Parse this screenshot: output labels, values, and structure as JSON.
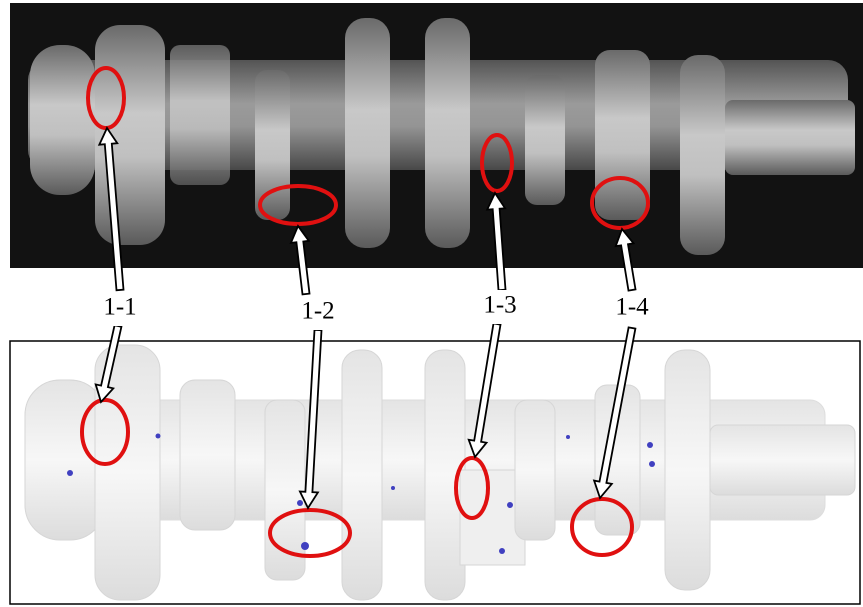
{
  "labels": [
    "1-1",
    "1-2",
    "1-3",
    "1-4"
  ]
}
